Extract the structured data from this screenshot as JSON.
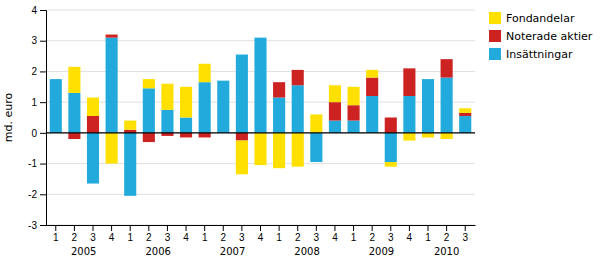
{
  "chart_data": {
    "type": "bar",
    "stacked": true,
    "ylabel": "md. euro",
    "categories": [
      "1",
      "2",
      "3",
      "4",
      "1",
      "2",
      "3",
      "4",
      "1",
      "2",
      "3",
      "4",
      "1",
      "2",
      "3",
      "4",
      "1",
      "2",
      "3",
      "4",
      "1",
      "2",
      "3"
    ],
    "annotations": [
      "2005",
      "2006",
      "2007",
      "2008",
      "2009",
      "2010"
    ],
    "series": [
      {
        "name": "Insättningar",
        "color": "#22AADD",
        "values": [
          1.75,
          1.3,
          -1.65,
          3.1,
          -2.05,
          1.45,
          0.75,
          0.5,
          1.65,
          1.7,
          2.55,
          3.1,
          1.15,
          1.55,
          -0.95,
          0.4,
          0.4,
          1.2,
          -0.95,
          1.2,
          1.75,
          1.8,
          0.55
        ]
      },
      {
        "name": "Noterade aktier",
        "color": "#CC2222",
        "values": [
          0.0,
          -0.2,
          0.55,
          0.1,
          0.1,
          -0.3,
          -0.1,
          -0.15,
          -0.15,
          0.0,
          -0.25,
          0.0,
          0.5,
          0.5,
          0.0,
          0.6,
          0.5,
          0.6,
          0.5,
          0.9,
          0.0,
          0.6,
          0.1
        ]
      },
      {
        "name": "Fondandelar",
        "color": "#FFE000",
        "values": [
          0.0,
          0.85,
          0.6,
          -1.0,
          0.3,
          0.3,
          0.85,
          1.0,
          0.6,
          0.0,
          -1.1,
          -1.05,
          -1.15,
          -1.1,
          0.6,
          0.55,
          0.6,
          0.25,
          -0.15,
          -0.25,
          -0.15,
          -0.2,
          0.15
        ]
      }
    ],
    "ylim": [
      -3,
      4
    ],
    "yticks": [
      -3,
      -2,
      -1,
      0,
      1,
      2,
      3,
      4
    ],
    "grid": true,
    "legend": "right"
  }
}
